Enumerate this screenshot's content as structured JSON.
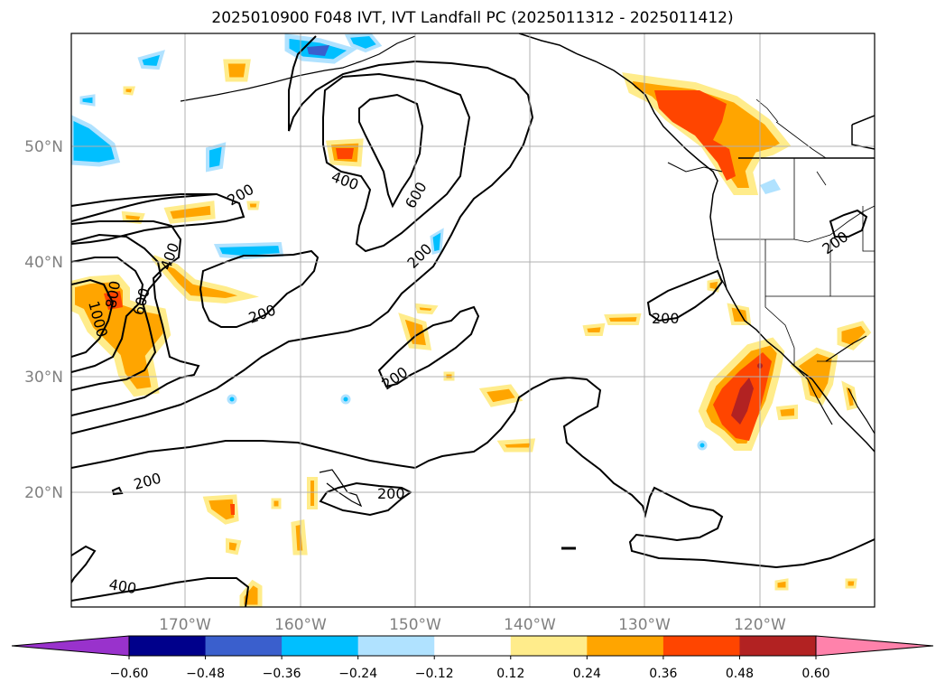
{
  "title": "2025010900 F048 IVT, IVT Landfall PC (2025011312 - 2025011412)",
  "map": {
    "lon_labels": [
      "170°W",
      "160°W",
      "150°W",
      "140°W",
      "130°W",
      "120°W"
    ],
    "lat_labels": [
      "50°N",
      "40°N",
      "30°N",
      "20°N"
    ],
    "contour_labels": [
      "200",
      "200",
      "200",
      "200",
      "200",
      "200",
      "200",
      "400",
      "400",
      "400",
      "600",
      "600",
      "800",
      "1000"
    ],
    "contour_color": "#000000",
    "grid_color": "#b0b0b0",
    "grid": true,
    "projection": "lat-lon"
  },
  "colorbar": {
    "ticks": [
      "−0.60",
      "−0.48",
      "−0.36",
      "−0.24",
      "−0.12",
      "0.12",
      "0.24",
      "0.36",
      "0.48",
      "0.60"
    ],
    "colors": [
      "#9932cc",
      "#00008b",
      "#3a5fcd",
      "#00bfff",
      "#b0e2ff",
      "#ffffff",
      "#ffec8b",
      "#ffa500",
      "#ff4500",
      "#b22222",
      "#ff82ab"
    ],
    "extend": "both"
  }
}
